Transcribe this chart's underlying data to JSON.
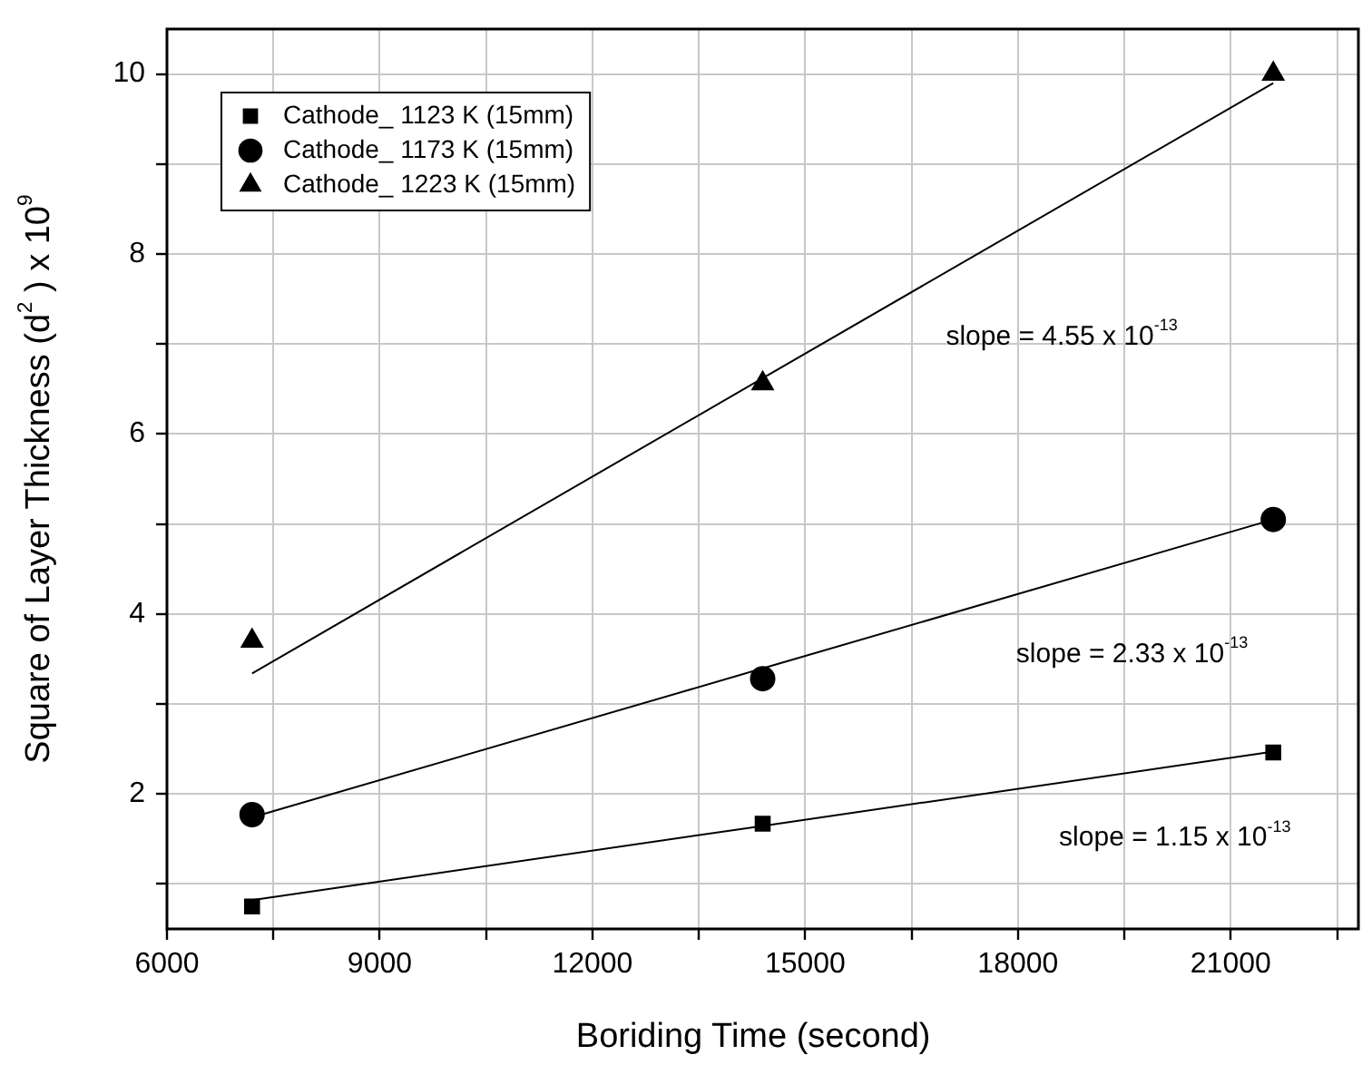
{
  "chart_data": {
    "type": "scatter",
    "xlabel": "Boriding Time (second)",
    "ylabel": "Square of Layer Thickness (d$^{2}$ ) x 10$^{9}$",
    "x": [
      7200,
      14400,
      21600
    ],
    "series": [
      {
        "name": "Cathode_ 1123 K (15mm)",
        "color": "#000000",
        "marker": "square",
        "values": [
          0.75,
          1.67,
          2.46
        ]
      },
      {
        "name": "Cathode_ 1173 K (15mm)",
        "color": "#000000",
        "marker": "circle",
        "values": [
          1.77,
          3.28,
          5.05
        ]
      },
      {
        "name": "Cathode_ 1223 K (15mm)",
        "color": "#000000",
        "marker": "triangle",
        "values": [
          3.7,
          6.56,
          10.0
        ]
      },
      {
        "type": "line",
        "color": "#000000",
        "marker": "none",
        "values": [
          0.82,
          1.645,
          2.47
        ]
      },
      {
        "type": "line",
        "color": "#000000",
        "marker": "none",
        "values": [
          1.74,
          3.395,
          5.05
        ]
      },
      {
        "type": "line",
        "color": "#000000",
        "marker": "none",
        "values": [
          3.34,
          6.62,
          9.9
        ]
      }
    ],
    "xlim": [
      6000,
      22800
    ],
    "xticks": [
      6000,
      {
        "value": 7500,
        "label": null
      },
      9000,
      {
        "value": 10500,
        "label": null
      },
      12000,
      {
        "value": 13500,
        "label": null
      },
      15000,
      {
        "value": 16500,
        "label": null
      },
      18000,
      {
        "value": 19500,
        "label": null
      },
      21000,
      {
        "value": 22500,
        "label": null
      }
    ],
    "ylim": [
      0.5,
      10.5
    ],
    "yticks": [
      {
        "value": 1,
        "label": null
      },
      2,
      {
        "value": 3,
        "label": null
      },
      4,
      {
        "value": 5,
        "label": null
      },
      6,
      {
        "value": 7,
        "label": null
      },
      8,
      {
        "value": 9,
        "label": null
      },
      10
    ],
    "grid": true,
    "legend": "top left",
    "annotations": [
      "slope = 4.55 x 10$^{-13}$",
      "slope = 2.33 x 10$^{-13}$",
      "slope = 1.15 x 10$^{-13}$"
    ]
  }
}
